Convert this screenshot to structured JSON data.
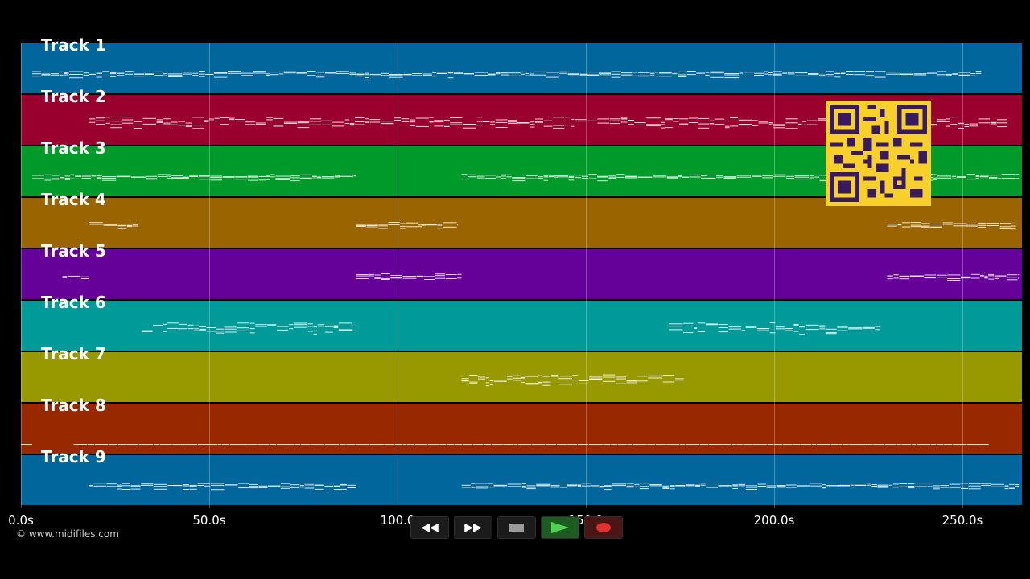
{
  "tracks": [
    {
      "label": "Track 1",
      "color": "#01669b",
      "segments": [
        [
          3,
          255
        ]
      ]
    },
    {
      "label": "Track 2",
      "color": "#99002e",
      "segments": [
        [
          18,
          262
        ]
      ]
    },
    {
      "label": "Track 3",
      "color": "#009a2b",
      "segments": [
        [
          3,
          89
        ],
        [
          117,
          265
        ]
      ]
    },
    {
      "label": "Track 4",
      "color": "#9a6500",
      "segments": [
        [
          18,
          31
        ],
        [
          89,
          116
        ],
        [
          230,
          264
        ]
      ]
    },
    {
      "label": "Track 5",
      "color": "#650099",
      "segments": [
        [
          11,
          18
        ],
        [
          89,
          117
        ],
        [
          230,
          265
        ]
      ]
    },
    {
      "label": "Track 6",
      "color": "#009a99",
      "segments": [
        [
          32,
          89
        ],
        [
          172,
          228
        ]
      ]
    },
    {
      "label": "Track 7",
      "color": "#989900",
      "segments": [
        [
          117,
          176
        ]
      ]
    },
    {
      "label": "Track 8",
      "color": "#982800",
      "segments": [
        [
          0,
          3
        ],
        [
          14,
          257
        ]
      ]
    },
    {
      "label": "Track 9",
      "color": "#01669b",
      "segments": [
        [
          18,
          89
        ],
        [
          117,
          265
        ]
      ]
    }
  ],
  "axis": {
    "ticks": [
      "0.0s",
      "50.0s",
      "100.0",
      "150.0",
      "200.0s",
      "250.0s"
    ],
    "tick_values": [
      0,
      50,
      100,
      150,
      200,
      250
    ],
    "max_seconds": 265
  },
  "credit": "© www.midifiles.com",
  "transport": {
    "rewind_icon": "rewind-icon",
    "forward_icon": "fast-forward-icon",
    "stop_icon": "stop-icon",
    "play_icon": "play-icon",
    "record_icon": "record-icon"
  },
  "qr_code": "qr-code-icon"
}
